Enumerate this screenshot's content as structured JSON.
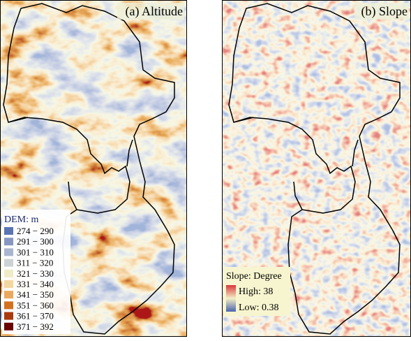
{
  "panels": [
    {
      "title": "(a) Altitude",
      "legend": {
        "title": "DEM: m",
        "items": [
          {
            "label": "274 − 290",
            "color": "#5b75b3"
          },
          {
            "label": "291 − 300",
            "color": "#8797c2"
          },
          {
            "label": "301 − 310",
            "color": "#aab6cf"
          },
          {
            "label": "311 − 320",
            "color": "#cdd3d4"
          },
          {
            "label": "321 − 330",
            "color": "#eeecc6"
          },
          {
            "label": "331 − 340",
            "color": "#f3d7a0"
          },
          {
            "label": "341 − 350",
            "color": "#eaa95e"
          },
          {
            "label": "351 − 360",
            "color": "#d4711f"
          },
          {
            "label": "361 − 370",
            "color": "#a93a0e"
          },
          {
            "label": "371 − 392",
            "color": "#6b0303"
          }
        ]
      }
    },
    {
      "title": "(b) Slope",
      "legend": {
        "title": "Slope: Degree",
        "high": "High: 38",
        "low": "Low: 0.38"
      }
    }
  ]
}
